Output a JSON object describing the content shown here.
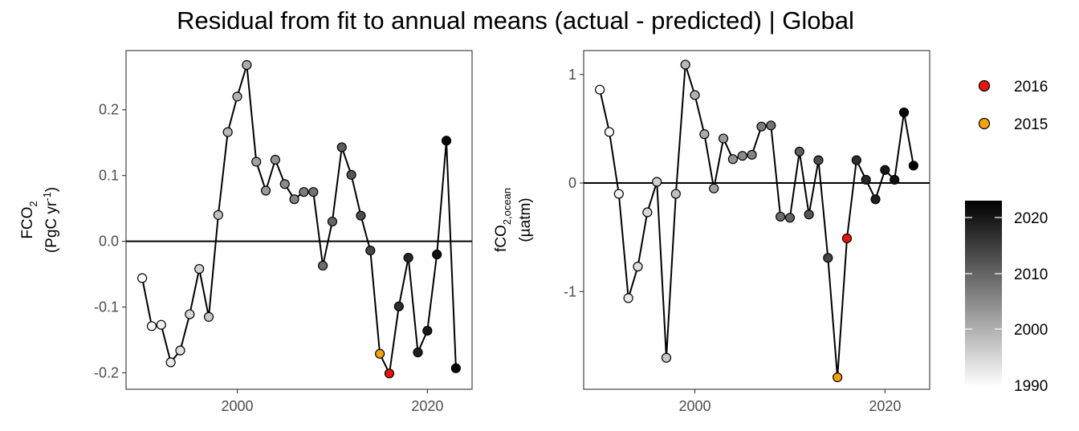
{
  "title": "Residual from fit to annual means (actual - predicted) | Global",
  "colors": {
    "highlight_2016": "#e8150d",
    "highlight_2015": "#f5a10f",
    "line": "#000000"
  },
  "legend": {
    "items": [
      {
        "label": "2016",
        "color": "#e8150d"
      },
      {
        "label": "2015",
        "color": "#f5a10f"
      }
    ],
    "colorbar": {
      "labels": [
        "2020",
        "2010",
        "2000",
        "1990"
      ],
      "range": [
        1990,
        2023
      ]
    }
  },
  "chart_data": [
    {
      "type": "line",
      "panel": "left",
      "ylabel_main": "FCO",
      "ylabel_sub": "2",
      "ylabel_units": "(PgC yr",
      "ylabel_sup": "-1",
      "ylabel_close": ")",
      "xlim": [
        1988.3,
        2024.7
      ],
      "ylim": [
        -0.225,
        0.29
      ],
      "xticks": [
        2000,
        2020
      ],
      "xtick_labels": [
        "2000",
        "2020"
      ],
      "yticks": [
        -0.2,
        -0.1,
        0.0,
        0.1,
        0.2
      ],
      "ytick_labels": [
        "-0.2",
        "-0.1",
        "0.0",
        "0.1",
        "0.2"
      ],
      "reference_line": 0,
      "x": [
        1990,
        1991,
        1992,
        1993,
        1994,
        1995,
        1996,
        1997,
        1998,
        1999,
        2000,
        2001,
        2002,
        2003,
        2004,
        2005,
        2006,
        2007,
        2008,
        2009,
        2010,
        2011,
        2012,
        2013,
        2014,
        2015,
        2016,
        2017,
        2018,
        2019,
        2020,
        2021,
        2022,
        2023
      ],
      "values": [
        -0.056,
        -0.129,
        -0.127,
        -0.184,
        -0.166,
        -0.111,
        -0.042,
        -0.115,
        0.04,
        0.166,
        0.22,
        0.268,
        0.121,
        0.077,
        0.124,
        0.087,
        0.064,
        0.075,
        0.075,
        -0.037,
        0.03,
        0.143,
        0.101,
        0.039,
        -0.014,
        -0.171,
        -0.201,
        -0.099,
        -0.025,
        -0.169,
        -0.136,
        -0.02,
        0.153,
        -0.193
      ]
    },
    {
      "type": "line",
      "panel": "right",
      "ylabel_main": "fCO",
      "ylabel_sub": "2,ocean",
      "ylabel_units": "(µatm)",
      "xlim": [
        1988.3,
        2024.7
      ],
      "ylim": [
        -1.9,
        1.22
      ],
      "xticks": [
        2000,
        2020
      ],
      "xtick_labels": [
        "2000",
        "2020"
      ],
      "yticks": [
        -1,
        0,
        1
      ],
      "ytick_labels": [
        "-1",
        "0",
        "1"
      ],
      "reference_line": 0,
      "x": [
        1990,
        1991,
        1992,
        1993,
        1994,
        1995,
        1996,
        1997,
        1998,
        1999,
        2000,
        2001,
        2002,
        2003,
        2004,
        2005,
        2006,
        2007,
        2008,
        2009,
        2010,
        2011,
        2012,
        2013,
        2014,
        2015,
        2016,
        2017,
        2018,
        2019,
        2020,
        2021,
        2022,
        2023
      ],
      "values": [
        0.86,
        0.47,
        -0.1,
        -1.06,
        -0.77,
        -0.27,
        0.01,
        -1.61,
        -0.1,
        1.09,
        0.81,
        0.45,
        -0.05,
        0.41,
        0.22,
        0.25,
        0.26,
        0.52,
        0.53,
        -0.31,
        -0.32,
        0.29,
        -0.29,
        0.21,
        -0.69,
        -1.79,
        -0.51,
        0.21,
        0.03,
        -0.15,
        0.12,
        0.03,
        0.65,
        0.16
      ]
    }
  ]
}
